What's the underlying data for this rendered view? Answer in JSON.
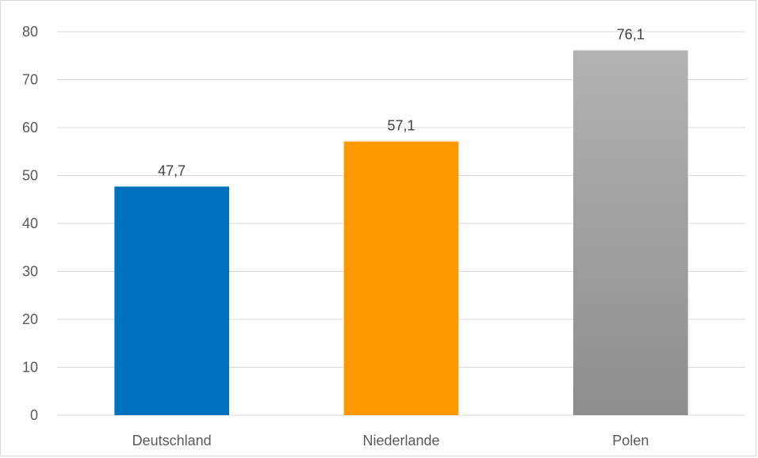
{
  "chart_data": {
    "type": "bar",
    "title": "",
    "xlabel": "",
    "ylabel": "",
    "categories": [
      "Deutschland",
      "Niederlande",
      "Polen"
    ],
    "values": [
      47.7,
      57.1,
      76.1
    ],
    "value_labels": [
      "47,7",
      "57,1",
      "76,1"
    ],
    "bar_colors": [
      "#0070c0",
      "#ff9900",
      "#a6a6a6"
    ],
    "ylim": [
      0,
      80
    ],
    "y_ticks": [
      0,
      10,
      20,
      30,
      40,
      50,
      60,
      70,
      80
    ],
    "grid": true,
    "legend": "none"
  }
}
